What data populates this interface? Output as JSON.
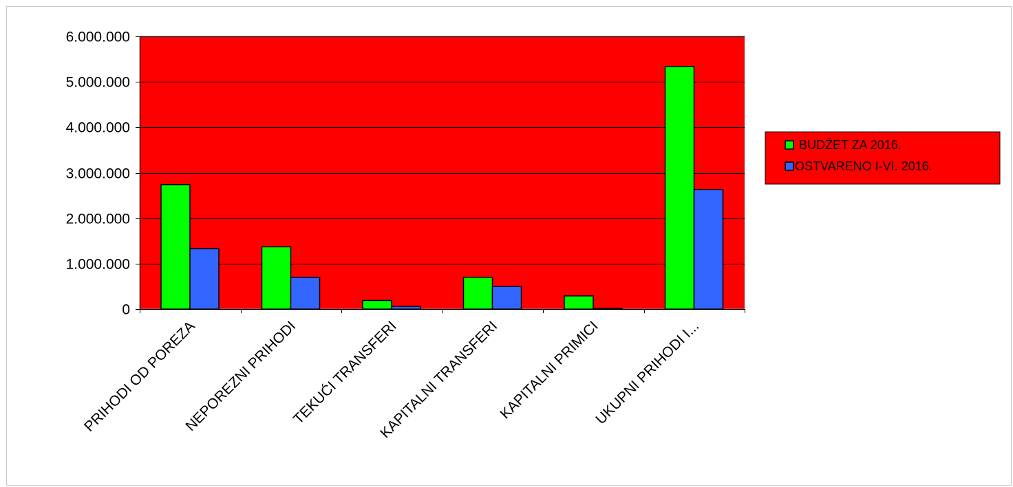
{
  "chart_data": {
    "type": "bar",
    "title": "",
    "xlabel": "",
    "ylabel": "",
    "categories": [
      "PRIHODI OD POREZA",
      "NEPOREZNI PRIHODI",
      "TEKUĆI TRANSFERI",
      "KAPITALNI TRANSFERI",
      "KAPITALNI PRIMICI",
      "UKUPNI PRIHODI I..."
    ],
    "series": [
      {
        "name": "BUDŽET ZA  2016.",
        "color": "#00ff00",
        "values": [
          2740000,
          1370000,
          190000,
          700000,
          290000,
          5340000
        ]
      },
      {
        "name": "OSTVARENO  I-VI. 2016.",
        "color": "#3366ff",
        "values": [
          1330000,
          700000,
          60000,
          500000,
          10000,
          2630000
        ]
      }
    ],
    "ylim": [
      0,
      6000000
    ],
    "yticks": [
      0,
      1000000,
      2000000,
      3000000,
      4000000,
      5000000,
      6000000
    ],
    "ytick_labels": [
      "0",
      "1.000.000",
      "2.000.000",
      "3.000.000",
      "4.000.000",
      "5.000.000",
      "6.000.000"
    ],
    "grid": true,
    "plot_background": "#ff0000",
    "legend_position": "right"
  }
}
